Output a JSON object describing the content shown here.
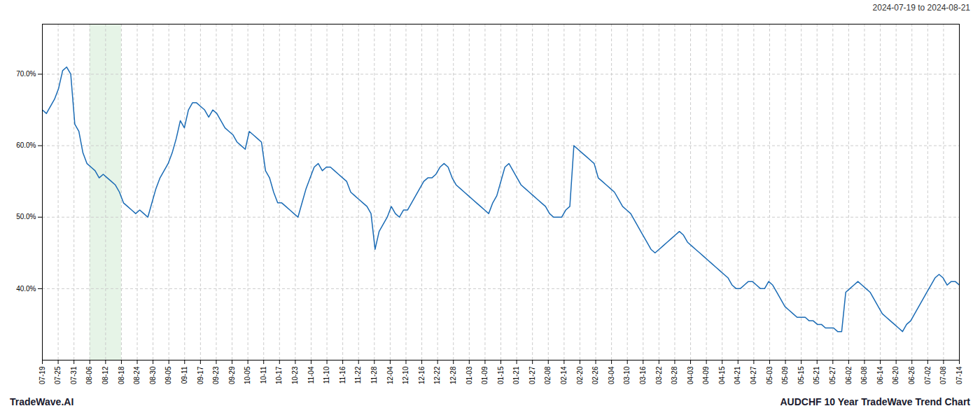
{
  "chart_data": {
    "type": "line",
    "title": "AUDCHF 10 Year TradeWave Trend Chart",
    "subtitle": "2024-07-19 to 2024-08-21",
    "annotations": [
      "TradeWave.AI"
    ],
    "color": "#1a6bb5",
    "grid": true,
    "highlight": {
      "x_start": 11.689655172413794,
      "x_end": 19.482758620689655,
      "color": "#c8e6c9"
    },
    "xlim": [
      0,
      226
    ],
    "xticks": [
      {
        "value": 0,
        "label": "07-19"
      },
      {
        "value": 3.896551724137931,
        "label": "07-25"
      },
      {
        "value": 7.793103448275862,
        "label": "07-31"
      },
      {
        "value": 11.689655172413794,
        "label": "08-06"
      },
      {
        "value": 15.586206896551724,
        "label": "08-12"
      },
      {
        "value": 19.482758620689655,
        "label": "08-18"
      },
      {
        "value": 23.379310344827587,
        "label": "08-24"
      },
      {
        "value": 27.275862068965516,
        "label": "08-30"
      },
      {
        "value": 31.17241379310345,
        "label": "09-05"
      },
      {
        "value": 35.06896551724138,
        "label": "09-11"
      },
      {
        "value": 38.96551724137931,
        "label": "09-17"
      },
      {
        "value": 42.86206896551724,
        "label": "09-23"
      },
      {
        "value": 46.75862068965517,
        "label": "09-29"
      },
      {
        "value": 50.6551724137931,
        "label": "10-05"
      },
      {
        "value": 54.55172413793103,
        "label": "10-11"
      },
      {
        "value": 58.44827586206897,
        "label": "10-17"
      },
      {
        "value": 62.3448275862069,
        "label": "10-23"
      },
      {
        "value": 66.24137931034483,
        "label": "11-04"
      },
      {
        "value": 70.13793103448276,
        "label": "11-10"
      },
      {
        "value": 74.03448275862068,
        "label": "11-16"
      },
      {
        "value": 77.93103448275862,
        "label": "11-22"
      },
      {
        "value": 81.82758620689656,
        "label": "11-28"
      },
      {
        "value": 85.72413793103448,
        "label": "12-04"
      },
      {
        "value": 89.62068965517241,
        "label": "12-10"
      },
      {
        "value": 93.51724137931035,
        "label": "12-16"
      },
      {
        "value": 97.41379310344828,
        "label": "12-22"
      },
      {
        "value": 101.3103448275862,
        "label": "12-28"
      },
      {
        "value": 105.20689655172414,
        "label": "01-03"
      },
      {
        "value": 109.10344827586206,
        "label": "01-09"
      },
      {
        "value": 113,
        "label": "01-15"
      },
      {
        "value": 116.89655172413794,
        "label": "01-21"
      },
      {
        "value": 120.79310344827586,
        "label": "01-27"
      },
      {
        "value": 124.6896551724138,
        "label": "02-08"
      },
      {
        "value": 128.58620689655172,
        "label": "02-14"
      },
      {
        "value": 132.48275862068965,
        "label": "02-20"
      },
      {
        "value": 136.3793103448276,
        "label": "02-26"
      },
      {
        "value": 140.27586206896552,
        "label": "03-04"
      },
      {
        "value": 144.17241379310346,
        "label": "03-10"
      },
      {
        "value": 148.06896551724137,
        "label": "03-16"
      },
      {
        "value": 151.9655172413793,
        "label": "03-22"
      },
      {
        "value": 155.86206896551724,
        "label": "03-28"
      },
      {
        "value": 159.75862068965517,
        "label": "04-03"
      },
      {
        "value": 163.6551724137931,
        "label": "04-09"
      },
      {
        "value": 167.55172413793105,
        "label": "04-15"
      },
      {
        "value": 171.44827586206895,
        "label": "04-21"
      },
      {
        "value": 175.3448275862069,
        "label": "04-27"
      },
      {
        "value": 179.24137931034483,
        "label": "05-03"
      },
      {
        "value": 183.13793103448276,
        "label": "05-09"
      },
      {
        "value": 187.0344827586207,
        "label": "05-15"
      },
      {
        "value": 190.93103448275863,
        "label": "05-21"
      },
      {
        "value": 194.82758620689654,
        "label": "05-27"
      },
      {
        "value": 198.72413793103448,
        "label": "06-02"
      },
      {
        "value": 202.6206896551724,
        "label": "06-08"
      },
      {
        "value": 206.51724137931035,
        "label": "06-14"
      },
      {
        "value": 210.41379310344828,
        "label": "06-20"
      },
      {
        "value": 214.31034482758622,
        "label": "06-26"
      },
      {
        "value": 218.20689655172413,
        "label": "07-02"
      },
      {
        "value": 222.10344827586206,
        "label": "07-08"
      },
      {
        "value": 226,
        "label": "07-14"
      }
    ],
    "ylim": [
      30,
      77
    ],
    "yticks": [
      {
        "value": 40,
        "label": "40.0%"
      },
      {
        "value": 50,
        "label": "50.0%"
      },
      {
        "value": 60,
        "label": "60.0%"
      },
      {
        "value": 70,
        "label": "70.0%"
      }
    ],
    "values": [
      65.0,
      64.5,
      65.5,
      66.5,
      68.0,
      70.5,
      71.0,
      70.0,
      63.0,
      62.0,
      59.0,
      57.5,
      57.0,
      56.5,
      55.5,
      56.0,
      55.5,
      55.0,
      54.5,
      53.5,
      52.0,
      51.5,
      51.0,
      50.5,
      51.0,
      50.5,
      50.0,
      52.0,
      54.0,
      55.5,
      56.5,
      57.5,
      59.0,
      61.0,
      63.5,
      62.5,
      65.0,
      66.0,
      66.0,
      65.5,
      65.0,
      64.0,
      65.0,
      64.5,
      63.5,
      62.5,
      62.0,
      61.5,
      60.5,
      60.0,
      59.5,
      62.0,
      61.5,
      61.0,
      60.5,
      56.5,
      55.5,
      53.5,
      52.0,
      52.0,
      51.5,
      51.0,
      50.5,
      50.0,
      52.0,
      54.0,
      55.5,
      57.0,
      57.5,
      56.5,
      57.0,
      57.0,
      56.5,
      56.0,
      55.5,
      55.0,
      53.5,
      53.0,
      52.5,
      52.0,
      51.5,
      50.5,
      45.5,
      48.0,
      49.0,
      50.0,
      51.5,
      50.5,
      50.0,
      51.0,
      51.0,
      52.0,
      53.0,
      54.0,
      55.0,
      55.5,
      55.5,
      56.0,
      57.0,
      57.5,
      57.0,
      55.5,
      54.5,
      54.0,
      53.5,
      53.0,
      52.5,
      52.0,
      51.5,
      51.0,
      50.5,
      52.0,
      53.0,
      55.0,
      57.0,
      57.5,
      56.5,
      55.5,
      54.5,
      54.0,
      53.5,
      53.0,
      52.5,
      52.0,
      51.5,
      50.5,
      50.0,
      50.0,
      50.0,
      51.0,
      51.5,
      60.0,
      59.5,
      59.0,
      58.5,
      58.0,
      57.5,
      55.5,
      55.0,
      54.5,
      54.0,
      53.5,
      52.5,
      51.5,
      51.0,
      50.5,
      49.5,
      48.5,
      47.5,
      46.5,
      45.5,
      45.0,
      45.5,
      46.0,
      46.5,
      47.0,
      47.5,
      48.0,
      47.5,
      46.5,
      46.0,
      45.5,
      45.0,
      44.5,
      44.0,
      43.5,
      43.0,
      42.5,
      42.0,
      41.5,
      40.5,
      40.0,
      40.0,
      40.5,
      41.0,
      41.0,
      40.5,
      40.0,
      40.0,
      41.0,
      40.5,
      39.5,
      38.5,
      37.5,
      37.0,
      36.5,
      36.0,
      36.0,
      36.0,
      35.5,
      35.5,
      35.0,
      35.0,
      34.5,
      34.5,
      34.5,
      34.0,
      34.0,
      39.5,
      40.0,
      40.5,
      41.0,
      40.5,
      40.0,
      39.5,
      38.5,
      37.5,
      36.5,
      36.0,
      35.5,
      35.0,
      34.5,
      34.0,
      35.0,
      35.5,
      36.5,
      37.5,
      38.5,
      39.5,
      40.5,
      41.5,
      42.0,
      41.5,
      40.5,
      41.0,
      41.0,
      40.5
    ]
  }
}
